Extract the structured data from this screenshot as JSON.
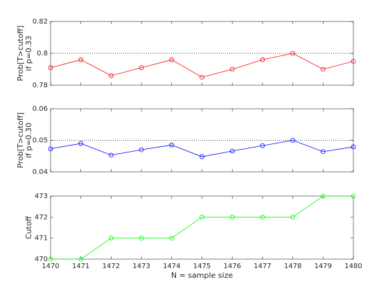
{
  "chart_data": [
    {
      "type": "line",
      "ylabel": [
        "Prob[T>cutoff]",
        "if p=0.33"
      ],
      "x": [
        1470,
        1471,
        1472,
        1473,
        1474,
        1475,
        1476,
        1477,
        1478,
        1479,
        1480
      ],
      "series": [
        {
          "color": "#ff0000",
          "values": [
            0.791,
            0.796,
            0.786,
            0.791,
            0.796,
            0.785,
            0.79,
            0.796,
            0.8,
            0.79,
            0.795
          ]
        }
      ],
      "reference_line": 0.8,
      "xlim": [
        1470,
        1480
      ],
      "xticks": [
        1470,
        1471,
        1472,
        1473,
        1474,
        1475,
        1476,
        1477,
        1478,
        1479,
        1480
      ],
      "ylim": [
        0.78,
        0.82
      ],
      "yticks": [
        0.78,
        0.8,
        0.82
      ]
    },
    {
      "type": "line",
      "ylabel": [
        "Prob[T>cutoff]",
        "if p=0.30"
      ],
      "x": [
        1470,
        1471,
        1472,
        1473,
        1474,
        1475,
        1476,
        1477,
        1478,
        1479,
        1480
      ],
      "series": [
        {
          "color": "#0000ff",
          "values": [
            0.0473,
            0.049,
            0.0453,
            0.047,
            0.0485,
            0.0448,
            0.0466,
            0.0483,
            0.05,
            0.0464,
            0.0479
          ]
        }
      ],
      "reference_line": 0.05,
      "xlim": [
        1470,
        1480
      ],
      "xticks": [
        1470,
        1471,
        1472,
        1473,
        1474,
        1475,
        1476,
        1477,
        1478,
        1479,
        1480
      ],
      "ylim": [
        0.04,
        0.06
      ],
      "yticks": [
        0.04,
        0.05,
        0.06
      ]
    },
    {
      "type": "line",
      "ylabel": [
        "Cutoff"
      ],
      "xlabel": "N = sample size",
      "x": [
        1470,
        1471,
        1472,
        1473,
        1474,
        1475,
        1476,
        1477,
        1478,
        1479,
        1480
      ],
      "series": [
        {
          "color": "#00ff00",
          "values": [
            470,
            470,
            471,
            471,
            471,
            472,
            472,
            472,
            472,
            473,
            473
          ]
        }
      ],
      "xlim": [
        1470,
        1480
      ],
      "xticks": [
        1470,
        1471,
        1472,
        1473,
        1474,
        1475,
        1476,
        1477,
        1478,
        1479,
        1480
      ],
      "xticklabels": true,
      "ylim": [
        470,
        473
      ],
      "yticks": [
        470,
        471,
        472,
        473
      ]
    }
  ]
}
